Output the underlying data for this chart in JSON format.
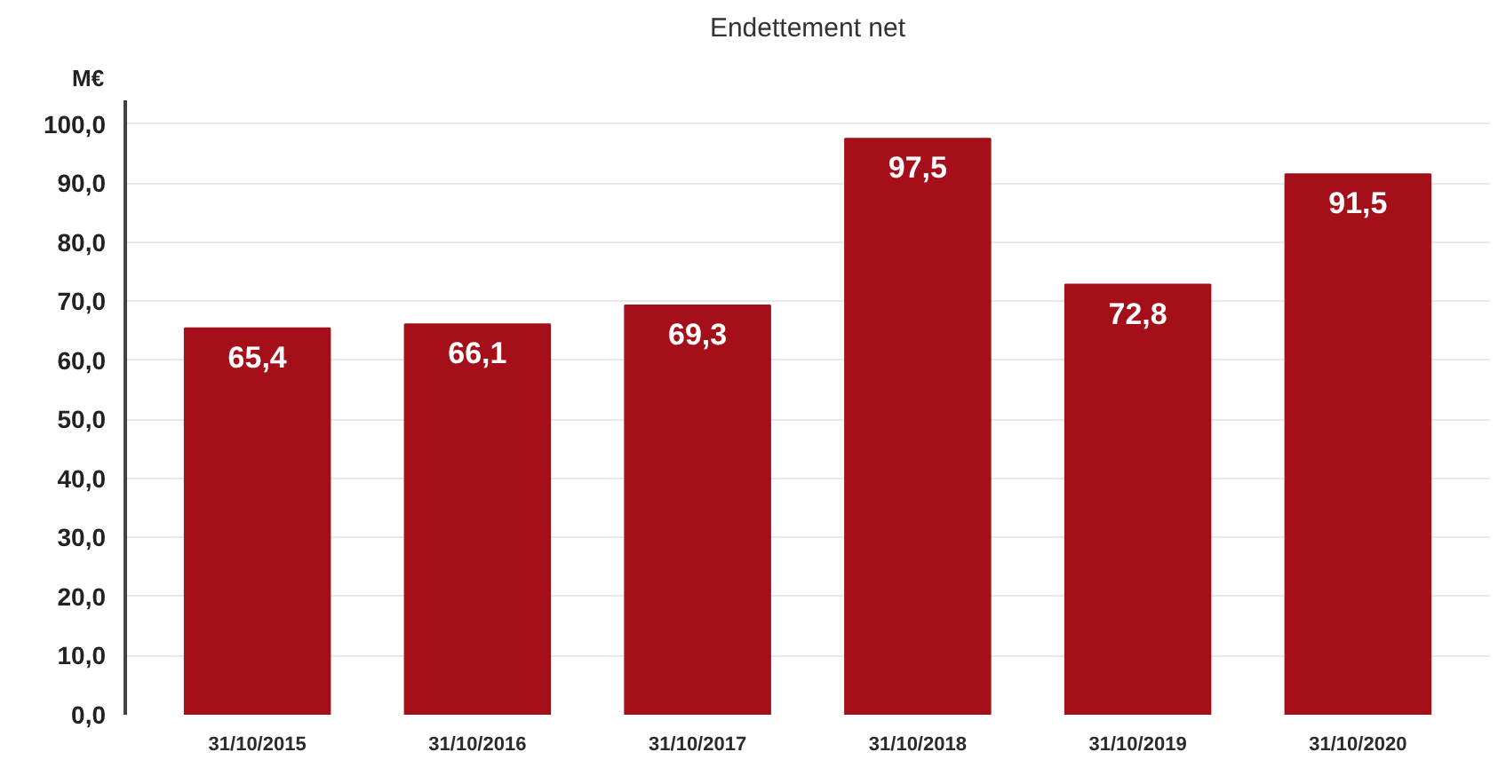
{
  "chart_data": {
    "type": "bar",
    "title": "Endettement net",
    "ylabel": "M€",
    "categories": [
      "31/10/2015",
      "31/10/2016",
      "31/10/2017",
      "31/10/2018",
      "31/10/2019",
      "31/10/2020"
    ],
    "values": [
      65.4,
      66.1,
      69.3,
      97.5,
      72.8,
      91.5
    ],
    "value_labels": [
      "65,4",
      "66,1",
      "69,3",
      "97,5",
      "72,8",
      "91,5"
    ],
    "color": "#a50f1a",
    "ylim": [
      0,
      104
    ],
    "yticks": [
      {
        "value": 0,
        "label": "0,0"
      },
      {
        "value": 10,
        "label": "10,0"
      },
      {
        "value": 20,
        "label": "20,0"
      },
      {
        "value": 30,
        "label": "30,0"
      },
      {
        "value": 40,
        "label": "40,0"
      },
      {
        "value": 50,
        "label": "50,0"
      },
      {
        "value": 60,
        "label": "60,0"
      },
      {
        "value": 70,
        "label": "70,0"
      },
      {
        "value": 80,
        "label": "80,0"
      },
      {
        "value": 90,
        "label": "90,0"
      },
      {
        "value": 100,
        "label": "100,0"
      }
    ],
    "grid": "y"
  }
}
